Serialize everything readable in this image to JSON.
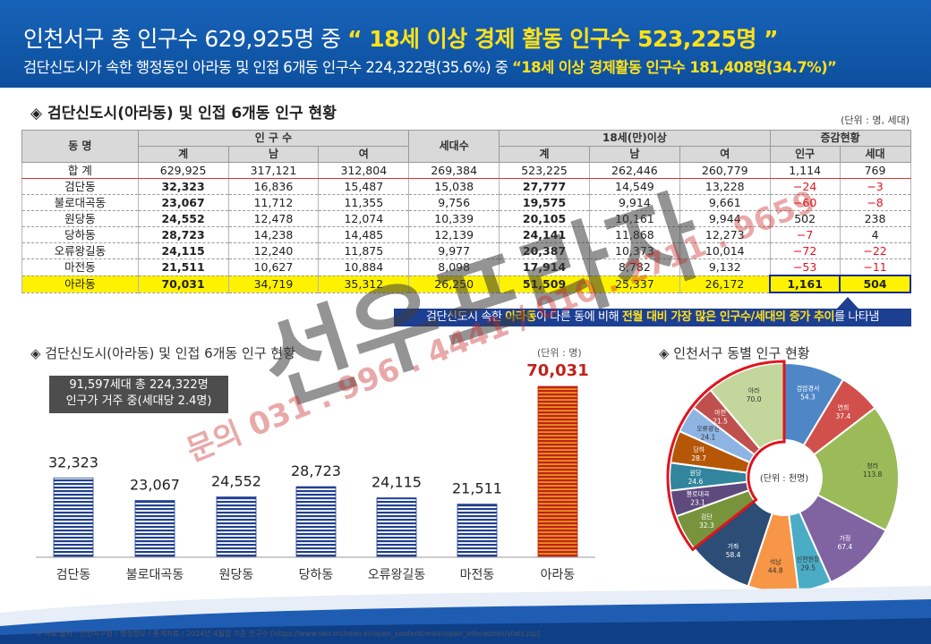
{
  "banner": {
    "line1_a": "인천서구 총 인구수 629,925명 중 ",
    "line1_b": "“ 18세 이상 경제 활동 인구수 523,225명 ”",
    "line2_a": "검단신도시가 속한 행정동인 아라동 및 인접 6개동 인구수 224,322명(35.6%) 중 ",
    "line2_b": "“18세 이상 경제활동 인구수 181,408명(34.7%)”"
  },
  "table_section": {
    "title": "◈ 검단신도시(아라동) 및 인접 6개동 인구 현황",
    "unit": "(단위 : 명, 세대)",
    "headers": {
      "dong": "동 명",
      "pop": "인 구 수",
      "households": "세대수",
      "adult": "18세(만)이상",
      "change": "증감현황",
      "total": "계",
      "male": "남",
      "female": "여",
      "change_pop": "인구",
      "change_hh": "세대"
    },
    "total_row": {
      "name": "합 계",
      "cells": [
        "629,925",
        "317,121",
        "312,804",
        "269,384",
        "523,225",
        "262,446",
        "260,779",
        "1,114",
        "769"
      ]
    },
    "rows": [
      {
        "name": "검단동",
        "cells": [
          "32,323",
          "16,836",
          "15,487",
          "15,038",
          "27,777",
          "14,549",
          "13,228",
          "−24",
          "−3"
        ]
      },
      {
        "name": "불로대곡동",
        "cells": [
          "23,067",
          "11,712",
          "11,355",
          "9,756",
          "19,575",
          "9,914",
          "9,661",
          "−60",
          "−8"
        ]
      },
      {
        "name": "원당동",
        "cells": [
          "24,552",
          "12,478",
          "12,074",
          "10,339",
          "20,105",
          "10,161",
          "9,944",
          "502",
          "238"
        ]
      },
      {
        "name": "당하동",
        "cells": [
          "28,723",
          "14,238",
          "14,485",
          "12,139",
          "24,141",
          "11,868",
          "12,273",
          "−7",
          "4"
        ]
      },
      {
        "name": "오류왕길동",
        "cells": [
          "24,115",
          "12,240",
          "11,875",
          "9,977",
          "20,387",
          "10,373",
          "10,014",
          "−72",
          "−22"
        ]
      },
      {
        "name": "마전동",
        "cells": [
          "21,511",
          "10,627",
          "10,884",
          "8,098",
          "17,914",
          "8,782",
          "9,132",
          "−53",
          "−11"
        ]
      },
      {
        "name": "아라동",
        "cells": [
          "70,031",
          "34,719",
          "35,312",
          "26,250",
          "51,509",
          "25,337",
          "26,172",
          "1,161",
          "504"
        ]
      }
    ]
  },
  "note": {
    "a": "검단신도시 속한 ",
    "b": "아라동",
    "c": "이 다른 동에 비해 ",
    "d": "전월 대비 가장 많은 인구수/세대의 증가 추이",
    "e": "를 나타냄"
  },
  "chart_data": [
    {
      "type": "bar",
      "title": "◈ 검단신도시(아라동) 및 인접 6개동 인구 현황",
      "unit": "(단위 : 명)",
      "callout_line1": "91,597세대 총 224,322명",
      "callout_line2": "인구가 거주 중(세대당 2.4명)",
      "categories": [
        "검단동",
        "불로대곡동",
        "원당동",
        "당하동",
        "오류왕길동",
        "마전동",
        "아라동"
      ],
      "values": [
        32323,
        23067,
        24552,
        28723,
        24115,
        21511,
        70031
      ],
      "value_labels": [
        "32,323",
        "23,067",
        "24,552",
        "28,723",
        "24,115",
        "21,511",
        "70,031"
      ],
      "highlight_index": 6,
      "colors": {
        "normal": "#1f3f8f",
        "highlight_fill": "#e8941a",
        "highlight_stripe": "#c0211b"
      },
      "ylim": [
        0,
        80000
      ]
    },
    {
      "type": "pie",
      "title": "◈ 인천서구 동별 인구 현황",
      "unit": "(단위 : 천명)",
      "slices": [
        {
          "label": "검암경서",
          "value": 54.3,
          "display": "54.3",
          "color": "#4e86c6"
        },
        {
          "label": "연희",
          "value": 37.4,
          "display": "37.4",
          "color": "#d2504c"
        },
        {
          "label": "청라",
          "value": 113.8,
          "display": "113.8",
          "color": "#9bbb59"
        },
        {
          "label": "가정",
          "value": 67.4,
          "display": "67.4",
          "color": "#8064a2"
        },
        {
          "label": "신현원창",
          "value": 29.5,
          "display": "29.5",
          "color": "#4bacc6"
        },
        {
          "label": "석남",
          "value": 44.8,
          "display": "44.8",
          "color": "#f79646"
        },
        {
          "label": "가좌",
          "value": 58.4,
          "display": "58.4",
          "color": "#2c4d75"
        },
        {
          "label": "검단",
          "value": 32.3,
          "display": "32.3",
          "color": "#77933c"
        },
        {
          "label": "불로대곡",
          "value": 23.1,
          "display": "23.1",
          "color": "#5f4a7e"
        },
        {
          "label": "원당",
          "value": 24.6,
          "display": "24.6",
          "color": "#31859c"
        },
        {
          "label": "당하",
          "value": 28.7,
          "display": "28.7",
          "color": "#b65708"
        },
        {
          "label": "오류왕길",
          "value": 24.1,
          "display": "24.1",
          "color": "#8eb4e3"
        },
        {
          "label": "마전",
          "value": 21.5,
          "display": "21.5",
          "color": "#c0504d"
        },
        {
          "label": "아라",
          "value": 70.0,
          "display": "70.0",
          "color": "#c3d69b"
        }
      ],
      "highlight_range": [
        7,
        13
      ]
    }
  ],
  "watermark": {
    "main": "선우프라자",
    "contact": "문의 031 . 996 . 4441 / 010 . 2711 . 9659"
  },
  "footer": "※ 자료 출처 : 인천서구청 / 행정정보 / 통계자료 / 2024년 4월말 기준 인구수 [https://www.seo.incheon.kr/open_content/main/open_info/admin/stats.jsp]"
}
